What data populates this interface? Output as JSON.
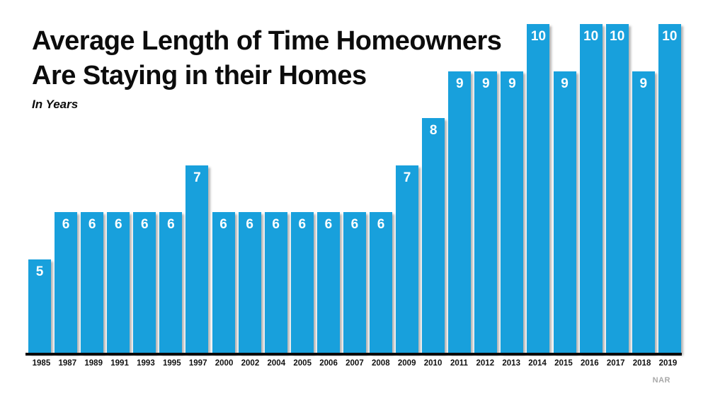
{
  "title": {
    "line1": "Average Length of Time Homeowners",
    "line2": "Are Staying in their Homes",
    "subtitle": "In Years"
  },
  "source": "NAR",
  "chart_data": {
    "type": "bar",
    "title": "Average Length of Time Homeowners Are Staying in their Homes",
    "subtitle": "In Years",
    "categories": [
      "1985",
      "1987",
      "1989",
      "1991",
      "1993",
      "1995",
      "1997",
      "2000",
      "2002",
      "2004",
      "2005",
      "2006",
      "2007",
      "2008",
      "2009",
      "2010",
      "2011",
      "2012",
      "2013",
      "2014",
      "2015",
      "2016",
      "2017",
      "2018",
      "2019"
    ],
    "values": [
      5,
      6,
      6,
      6,
      6,
      6,
      7,
      6,
      6,
      6,
      6,
      6,
      6,
      6,
      7,
      8,
      9,
      9,
      9,
      10,
      9,
      10,
      10,
      9,
      10
    ],
    "xlabel": "",
    "ylabel": "",
    "ylim": [
      3,
      10
    ],
    "grid": false,
    "legend": false,
    "bar_color": "#18A0DC",
    "value_label_color": "#FFFFFF",
    "value_labels_shown": true,
    "source": "NAR"
  }
}
